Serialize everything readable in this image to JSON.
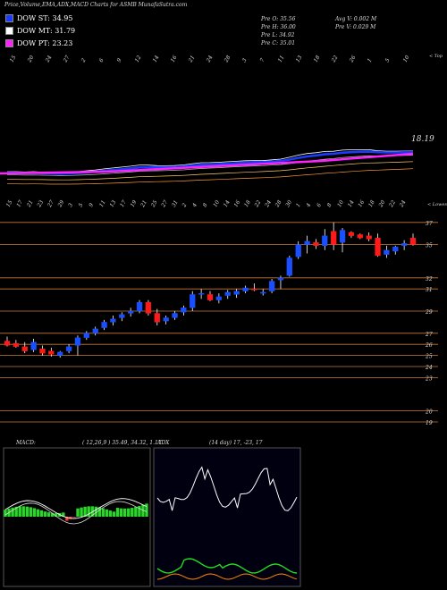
{
  "header": {
    "title": "Price,Volume,EMA,ADX,MACD Charts for ASMB MunafaSutra.com"
  },
  "legend": [
    {
      "label": "DOW ST: 34.95",
      "color": "#1a3cff"
    },
    {
      "label": "DOW MT: 31.79",
      "color": "#ffffff"
    },
    {
      "label": "DOW PT: 23.23",
      "color": "#ff22ff"
    }
  ],
  "stats": {
    "pre_o": "Pre   O: 35.56",
    "pre_h": "Pre   H: 36.00",
    "pre_l": "Pre   L: 34.92",
    "pre_c": "Pre   C: 35.01",
    "avg_v": "Avg V: 0.002  M",
    "pre_v": "Pre   V: 0.029 M"
  },
  "panels": {
    "ema_right_label": "< Top",
    "ema_value_label": "18.19",
    "candle_right_label": "< Lowest",
    "macd_label": "MACD:",
    "macd_params": "( 12,26,9 ) 35.49, 34.32, 1.17",
    "adx_label": "ADX",
    "adx_params": "(14  day) 17,  -23,  17"
  },
  "colors": {
    "up": "#1a4fff",
    "down": "#ff1a1a",
    "ema_st": "#1a3cff",
    "ema_pt": "#ff22ff",
    "macd_hist": "#2bd62b",
    "adx_line": "#ffffff",
    "dmi_plus": "#22dd22",
    "dmi_minus": "#ff8800"
  },
  "chart_data": [
    {
      "type": "line",
      "name": "EMA panel",
      "x_ticks": [
        "15",
        "20",
        "24",
        "27",
        "2",
        "6",
        "9",
        "12",
        "14",
        "16",
        "21",
        "24",
        "28",
        "3",
        "7",
        "11",
        "13",
        "18",
        "22",
        "26",
        "1",
        "5",
        "10"
      ],
      "value_label": "18.19"
    },
    {
      "type": "candlestick",
      "name": "Price panel",
      "x_ticks": [
        "15",
        "17",
        "21",
        "23",
        "27",
        "29",
        "3",
        "5",
        "9",
        "11",
        "13",
        "17",
        "19",
        "21",
        "25",
        "27",
        "31",
        "2",
        "4",
        "8",
        "10",
        "14",
        "16",
        "18",
        "22",
        "24",
        "28",
        "30",
        "1",
        "4",
        "6",
        "8",
        "10",
        "14",
        "16",
        "18",
        "20",
        "22",
        "24"
      ],
      "y_ticks": [
        37,
        35,
        32,
        31,
        29,
        27,
        26,
        25,
        24,
        23,
        20,
        19
      ],
      "ohlc": [
        [
          26.3,
          26.7,
          25.8,
          25.9
        ],
        [
          26.1,
          26.4,
          25.7,
          25.8
        ],
        [
          25.8,
          26.2,
          25.2,
          25.4
        ],
        [
          25.5,
          26.5,
          25.3,
          26.2
        ],
        [
          25.6,
          25.9,
          25.0,
          25.2
        ],
        [
          25.4,
          25.7,
          24.9,
          25.1
        ],
        [
          25.0,
          25.4,
          24.8,
          25.3
        ],
        [
          25.4,
          26.0,
          25.2,
          25.8
        ],
        [
          25.9,
          26.8,
          25.0,
          26.6
        ],
        [
          26.6,
          27.2,
          26.4,
          27.0
        ],
        [
          27.0,
          27.6,
          26.8,
          27.4
        ],
        [
          27.5,
          28.2,
          27.3,
          28.0
        ],
        [
          28.0,
          28.6,
          27.7,
          28.3
        ],
        [
          28.4,
          28.9,
          28.1,
          28.7
        ],
        [
          28.8,
          29.3,
          28.5,
          29.0
        ],
        [
          29.0,
          30.0,
          28.8,
          29.8
        ],
        [
          29.8,
          30.0,
          28.6,
          28.8
        ],
        [
          28.8,
          29.2,
          27.7,
          28.0
        ],
        [
          28.1,
          28.6,
          27.8,
          28.4
        ],
        [
          28.4,
          29.0,
          28.2,
          28.8
        ],
        [
          28.9,
          29.5,
          28.6,
          29.3
        ],
        [
          29.3,
          30.8,
          29.0,
          30.5
        ],
        [
          30.5,
          31.0,
          30.1,
          30.6
        ],
        [
          30.5,
          30.8,
          29.9,
          30.0
        ],
        [
          30.0,
          30.6,
          29.7,
          30.3
        ],
        [
          30.4,
          30.9,
          30.1,
          30.7
        ],
        [
          30.5,
          31.0,
          30.2,
          30.8
        ],
        [
          30.8,
          31.3,
          30.6,
          31.1
        ],
        [
          31.0,
          31.5,
          30.8,
          30.9
        ],
        [
          30.6,
          31.0,
          30.4,
          30.7
        ],
        [
          30.8,
          31.9,
          30.6,
          31.7
        ],
        [
          31.8,
          32.2,
          31.0,
          32.0
        ],
        [
          32.2,
          34.0,
          32.1,
          33.8
        ],
        [
          33.9,
          35.3,
          33.7,
          35.0
        ],
        [
          35.0,
          35.8,
          34.2,
          35.3
        ],
        [
          35.2,
          35.5,
          34.6,
          34.9
        ],
        [
          34.9,
          36.4,
          34.5,
          35.8
        ],
        [
          36.2,
          37.0,
          34.5,
          35.0
        ],
        [
          35.2,
          36.5,
          34.3,
          36.3
        ],
        [
          36.1,
          36.2,
          35.6,
          35.8
        ],
        [
          35.9,
          36.0,
          35.5,
          35.6
        ],
        [
          35.8,
          36.1,
          35.3,
          35.5
        ],
        [
          35.6,
          36.0,
          33.9,
          34.0
        ],
        [
          34.1,
          34.9,
          33.8,
          34.5
        ],
        [
          34.4,
          34.9,
          34.1,
          34.8
        ],
        [
          34.9,
          35.4,
          34.5,
          35.1
        ],
        [
          35.6,
          36.0,
          34.9,
          35.0
        ]
      ]
    },
    {
      "type": "line",
      "name": "MACD panel",
      "title": "MACD: ( 12,26,9 ) 35.49, 34.32, 1.17"
    },
    {
      "type": "line",
      "name": "ADX panel",
      "title": "ADX (14  day) 17,  -23,  17"
    }
  ]
}
